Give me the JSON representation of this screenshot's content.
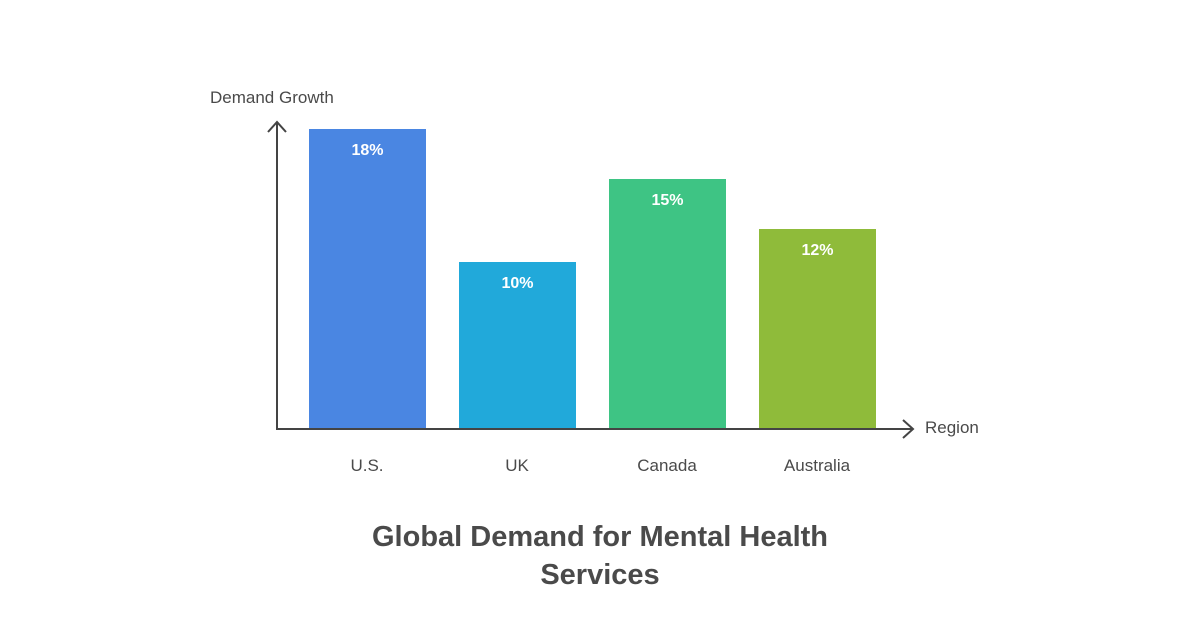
{
  "chart_data": {
    "type": "bar",
    "title": "Global Demand for Mental Health Services",
    "xlabel": "Region",
    "ylabel": "Demand Growth",
    "categories": [
      "U.S.",
      "UK",
      "Canada",
      "Australia"
    ],
    "values": [
      18,
      10,
      15,
      12
    ],
    "value_labels": [
      "18%",
      "10%",
      "15%",
      "12%"
    ],
    "colors": [
      "#4a86e2",
      "#21a9da",
      "#3ec484",
      "#8fbb3a"
    ],
    "unit": "%",
    "grid": false,
    "legend": false
  },
  "title_lines": [
    "Global Demand for Mental Health",
    "Services"
  ]
}
